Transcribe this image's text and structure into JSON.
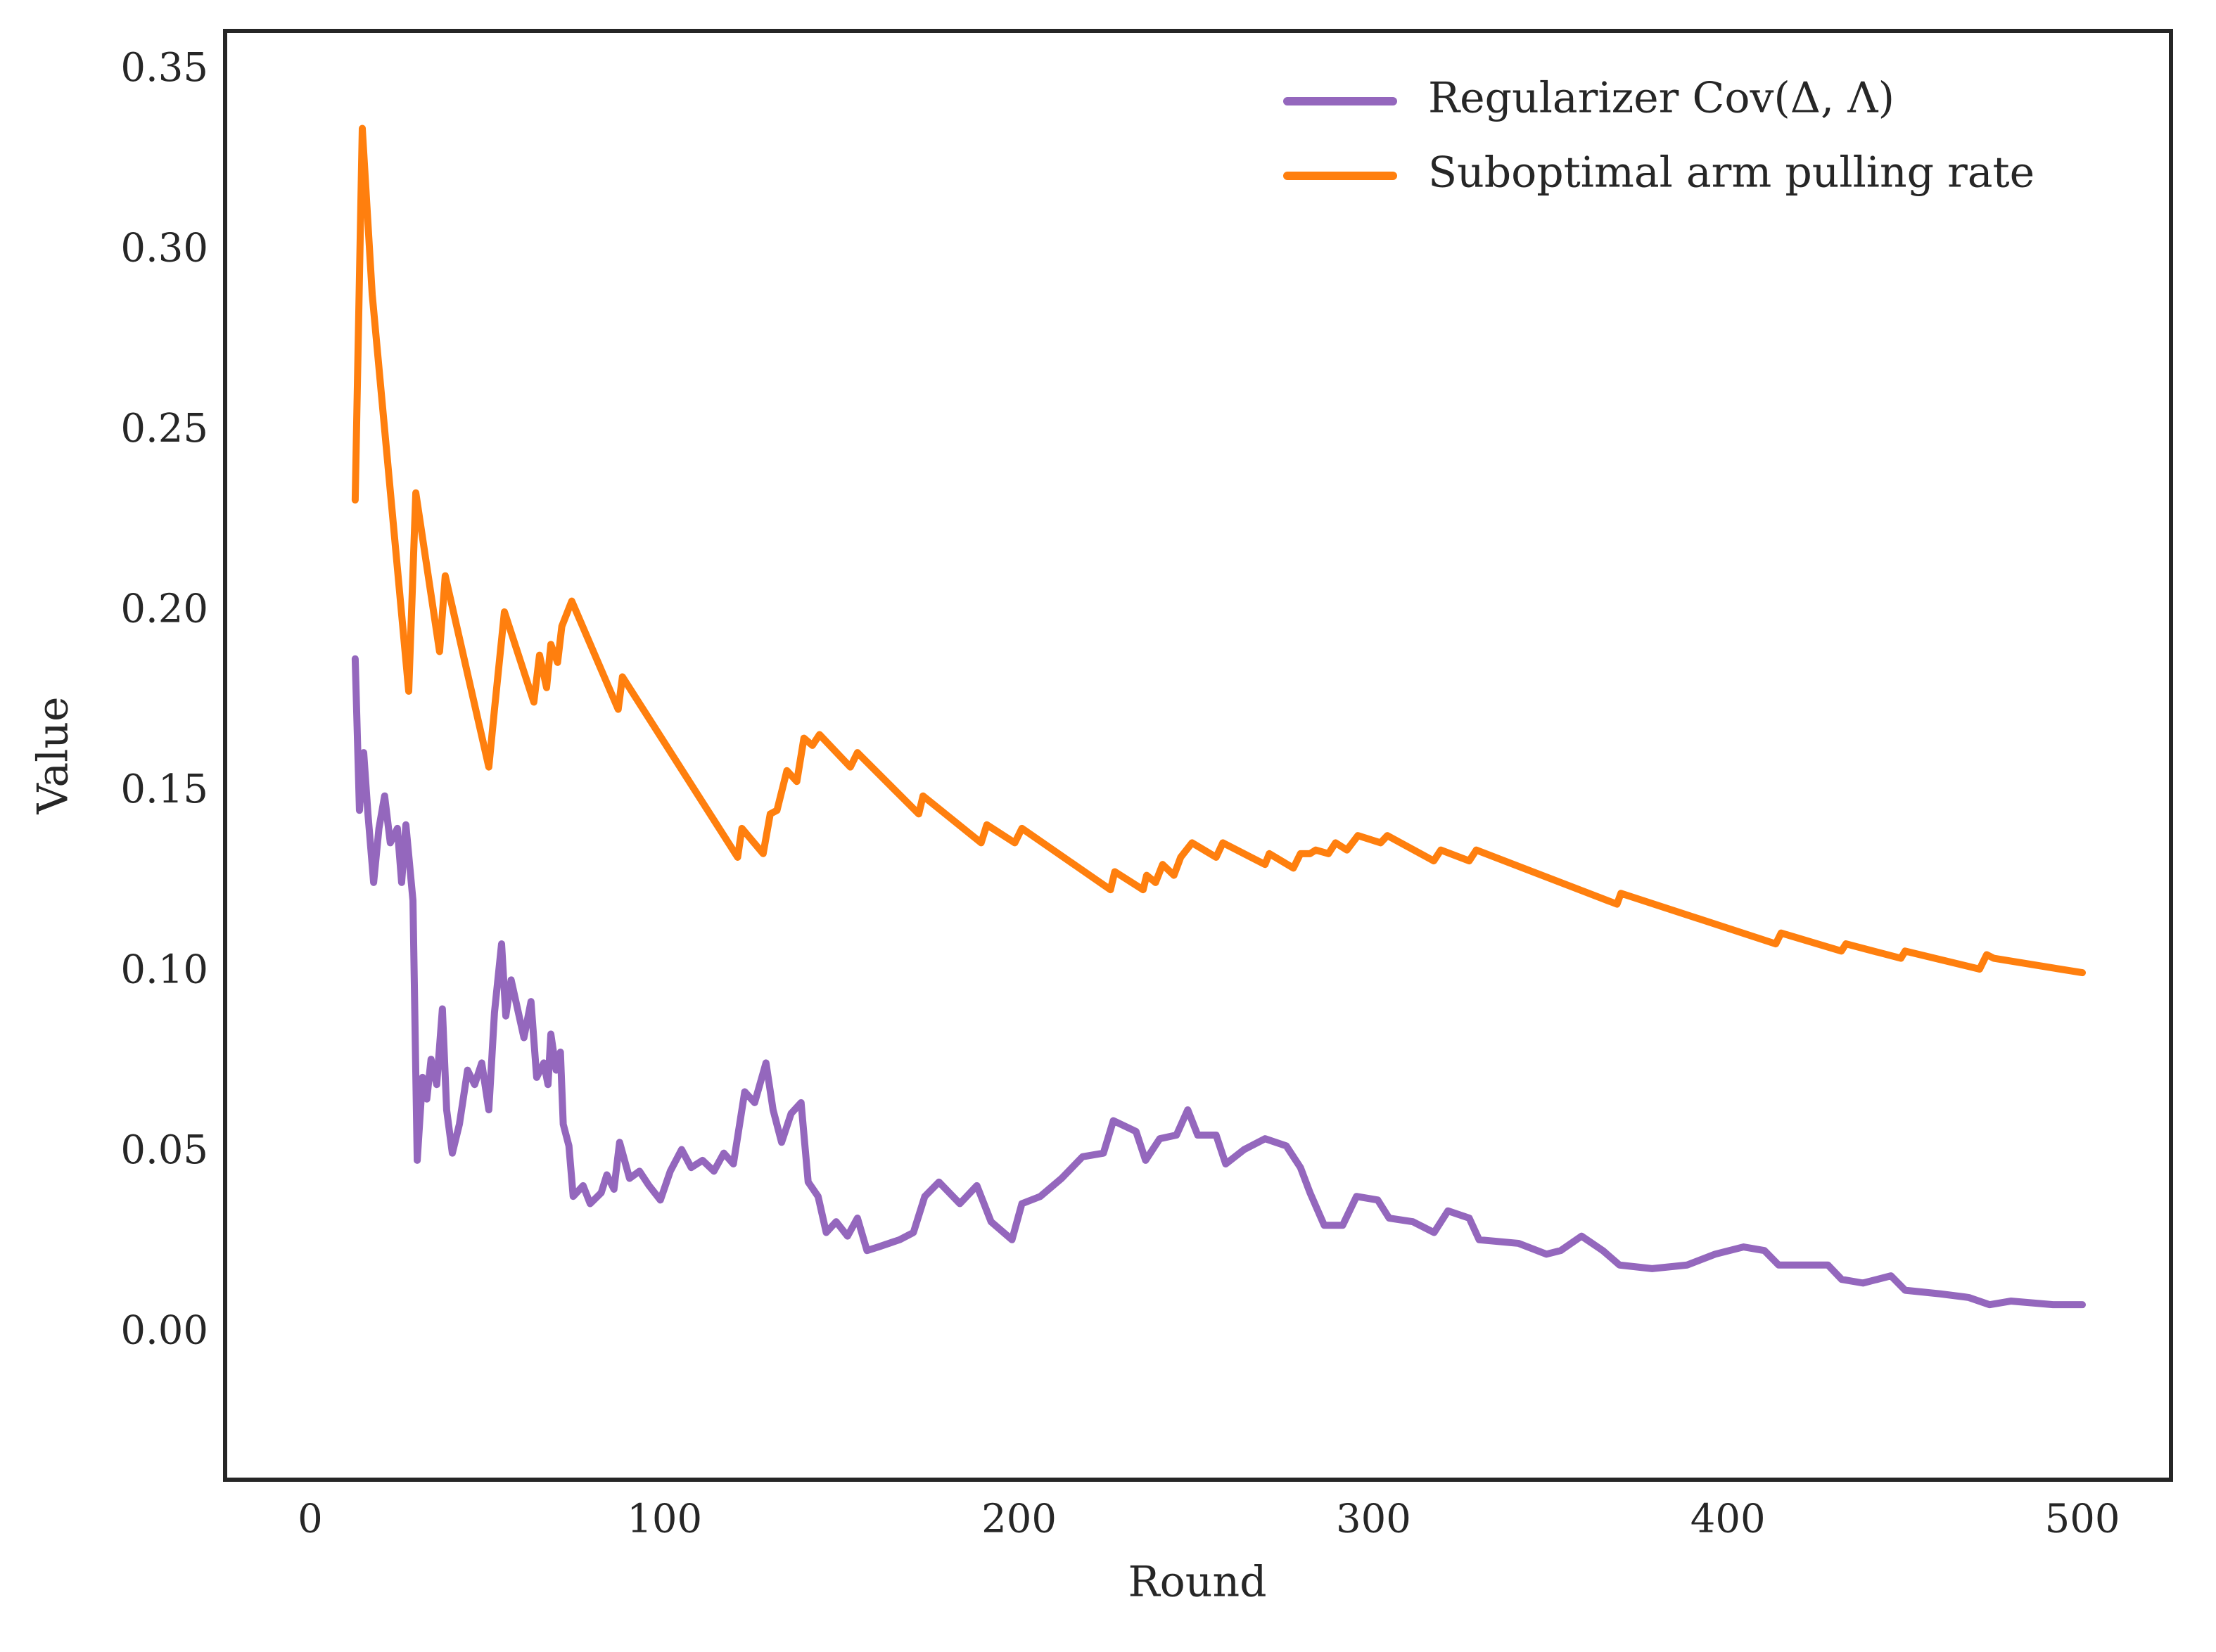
{
  "chart_data": {
    "type": "line",
    "xlabel": "Round",
    "ylabel": "Value",
    "xlim": [
      -24,
      525
    ],
    "ylim": [
      -0.0405,
      0.361
    ],
    "xticks": [
      0,
      100,
      200,
      300,
      400,
      500
    ],
    "yticks": [
      {
        "value": 0,
        "label": "0.00"
      },
      {
        "value": 0.05,
        "label": "0.05"
      },
      {
        "value": 0.1,
        "label": "0.10"
      },
      {
        "value": 0.15,
        "label": "0.15"
      },
      {
        "value": 0.2,
        "label": "0.20"
      },
      {
        "value": 0.25,
        "label": "0.25"
      },
      {
        "value": 0.3,
        "label": "0.30"
      },
      {
        "value": 0.35,
        "label": "0.35"
      }
    ],
    "grid": false,
    "legend": "upper right",
    "series": [
      {
        "name": "Regularizer Cov(Δ, Λ)",
        "color": "#9467bd",
        "x": [
          12.7,
          13.9,
          15.1,
          16.3,
          17.9,
          19.4,
          21,
          22.6,
          24.6,
          25.8,
          27,
          29,
          30.2,
          31.7,
          32.9,
          34.1,
          35.7,
          37.3,
          38.5,
          40.1,
          42.1,
          44.4,
          46.4,
          48.4,
          50.4,
          52,
          54,
          55.2,
          56.7,
          60.3,
          62.3,
          63.9,
          65.9,
          67.1,
          67.9,
          69.4,
          70.6,
          71.4,
          73,
          74.2,
          77,
          79,
          82.1,
          83.7,
          85.7,
          87.3,
          90.1,
          92.9,
          95.6,
          98.8,
          101.6,
          104.8,
          107.5,
          110.7,
          113.9,
          116.7,
          119.4,
          122.6,
          125.4,
          128.6,
          130.6,
          133,
          135.7,
          138.5,
          140.5,
          143.3,
          145.6,
          148.4,
          151.6,
          154.4,
          157.1,
          160.3,
          166.3,
          170.2,
          173.4,
          177.4,
          183.3,
          188.1,
          192.1,
          198,
          200.8,
          206,
          212,
          217.9,
          223.8,
          226.6,
          233,
          235.7,
          239.7,
          244.4,
          247.6,
          250.4,
          255.6,
          258.3,
          263.5,
          269.4,
          275.4,
          279.4,
          282.1,
          286.1,
          291.3,
          295.2,
          301.2,
          304.4,
          311.1,
          317.1,
          321,
          327,
          329.8,
          340.9,
          348.8,
          352.8,
          358.7,
          364.7,
          369.4,
          378.6,
          388.5,
          396.4,
          404.4,
          410.3,
          414.3,
          422.2,
          428.2,
          432.1,
          438.1,
          446,
          450,
          459.9,
          467.9,
          473.8,
          479.8,
          491.7,
          500
        ],
        "values": [
          0.187,
          0.145,
          0.161,
          0.144,
          0.125,
          0.14,
          0.149,
          0.136,
          0.14,
          0.125,
          0.141,
          0.12,
          0.048,
          0.071,
          0.065,
          0.076,
          0.069,
          0.09,
          0.062,
          0.05,
          0.058,
          0.073,
          0.069,
          0.075,
          0.062,
          0.089,
          0.108,
          0.088,
          0.098,
          0.082,
          0.092,
          0.071,
          0.075,
          0.069,
          0.083,
          0.073,
          0.078,
          0.058,
          0.052,
          0.038,
          0.041,
          0.036,
          0.039,
          0.044,
          0.04,
          0.053,
          0.043,
          0.045,
          0.041,
          0.037,
          0.045,
          0.051,
          0.046,
          0.048,
          0.045,
          0.05,
          0.047,
          0.067,
          0.064,
          0.075,
          0.062,
          0.053,
          0.061,
          0.064,
          0.042,
          0.038,
          0.028,
          0.031,
          0.027,
          0.032,
          0.023,
          0.024,
          0.026,
          0.028,
          0.038,
          0.042,
          0.036,
          0.041,
          0.031,
          0.026,
          0.036,
          0.038,
          0.043,
          0.049,
          0.05,
          0.059,
          0.056,
          0.048,
          0.054,
          0.055,
          0.062,
          0.055,
          0.055,
          0.047,
          0.051,
          0.054,
          0.052,
          0.046,
          0.039,
          0.03,
          0.03,
          0.038,
          0.037,
          0.032,
          0.031,
          0.028,
          0.034,
          0.032,
          0.026,
          0.025,
          0.022,
          0.023,
          0.027,
          0.023,
          0.019,
          0.018,
          0.019,
          0.022,
          0.024,
          0.023,
          0.019,
          0.019,
          0.019,
          0.015,
          0.014,
          0.016,
          0.012,
          0.011,
          0.01,
          0.008,
          0.009,
          0.008,
          0.008
        ]
      },
      {
        "name": "Suboptimal arm pulling rate",
        "color": "#ff7f0e",
        "x": [
          12.7,
          14.7,
          17.5,
          27.8,
          29.8,
          36.5,
          38.1,
          50.4,
          52,
          54.8,
          63.1,
          64.7,
          66.7,
          67.9,
          69.8,
          71,
          73.8,
          86.9,
          88.1,
          120.6,
          121.8,
          127.8,
          129.8,
          131.7,
          134.5,
          137.3,
          139.3,
          141.7,
          143.7,
          152.4,
          154.4,
          171.7,
          172.9,
          189.3,
          190.9,
          198.8,
          200.8,
          225.8,
          227,
          235,
          236,
          238.5,
          240.5,
          243.7,
          245.6,
          248.8,
          255.6,
          257.5,
          269.4,
          270.6,
          277.4,
          279.4,
          282.1,
          283.7,
          287.3,
          289.3,
          292.5,
          295.6,
          302,
          303.9,
          317,
          319,
          327,
          329,
          368.7,
          369.8,
          413.5,
          415,
          432,
          433.3,
          448.8,
          450,
          471,
          473,
          475,
          500
        ],
        "values": [
          0.231,
          0.334,
          0.288,
          0.178,
          0.233,
          0.189,
          0.21,
          0.157,
          0.173,
          0.2,
          0.175,
          0.188,
          0.179,
          0.191,
          0.186,
          0.196,
          0.203,
          0.173,
          0.182,
          0.132,
          0.14,
          0.133,
          0.144,
          0.145,
          0.156,
          0.153,
          0.165,
          0.163,
          0.166,
          0.157,
          0.161,
          0.144,
          0.149,
          0.136,
          0.141,
          0.136,
          0.14,
          0.123,
          0.128,
          0.123,
          0.127,
          0.125,
          0.13,
          0.127,
          0.132,
          0.136,
          0.132,
          0.136,
          0.13,
          0.133,
          0.129,
          0.133,
          0.133,
          0.134,
          0.133,
          0.136,
          0.134,
          0.138,
          0.136,
          0.138,
          0.131,
          0.134,
          0.131,
          0.134,
          0.119,
          0.122,
          0.108,
          0.111,
          0.106,
          0.108,
          0.104,
          0.106,
          0.101,
          0.105,
          0.104,
          0.1
        ]
      }
    ]
  }
}
